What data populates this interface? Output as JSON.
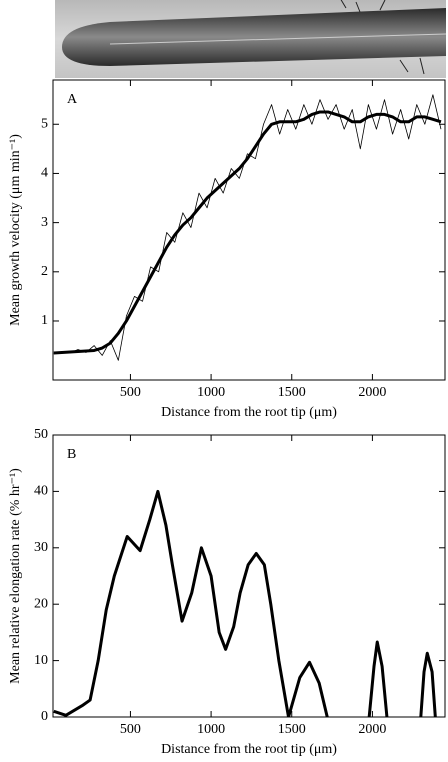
{
  "chart_data": [
    {
      "type": "line",
      "panel": "A",
      "ylabel": "Mean growth velocity (μm min⁻¹)",
      "xlabel": "Distance from the root tip (μm)",
      "x": [
        25,
        75,
        125,
        175,
        225,
        275,
        325,
        375,
        425,
        475,
        525,
        575,
        625,
        675,
        725,
        775,
        825,
        875,
        925,
        975,
        1025,
        1075,
        1125,
        1175,
        1225,
        1275,
        1325,
        1375,
        1425,
        1475,
        1525,
        1575,
        1625,
        1675,
        1725,
        1775,
        1825,
        1875,
        1925,
        1975,
        2025,
        2075,
        2125,
        2175,
        2225,
        2275,
        2325,
        2375,
        2425
      ],
      "series": [
        {
          "color": "#000000",
          "width": 0.8,
          "values": [
            0.33,
            0.38,
            0.35,
            0.42,
            0.36,
            0.5,
            0.3,
            0.6,
            0.2,
            1.1,
            1.5,
            1.4,
            2.1,
            2.0,
            2.8,
            2.6,
            3.2,
            2.9,
            3.6,
            3.3,
            3.9,
            3.6,
            4.1,
            3.9,
            4.4,
            4.3,
            5.0,
            5.4,
            4.8,
            5.3,
            4.9,
            5.4,
            5.0,
            5.5,
            5.1,
            5.4,
            4.9,
            5.3,
            4.5,
            5.4,
            4.9,
            5.5,
            4.8,
            5.3,
            4.7,
            5.4,
            5.0,
            5.6,
            4.9
          ]
        },
        {
          "color": "#000000",
          "width": 3,
          "values": [
            0.35,
            0.36,
            0.37,
            0.38,
            0.39,
            0.4,
            0.45,
            0.55,
            0.75,
            1.0,
            1.3,
            1.6,
            1.9,
            2.2,
            2.5,
            2.75,
            2.95,
            3.1,
            3.3,
            3.5,
            3.65,
            3.8,
            3.95,
            4.1,
            4.3,
            4.55,
            4.8,
            5.0,
            5.05,
            5.05,
            5.05,
            5.1,
            5.2,
            5.25,
            5.25,
            5.2,
            5.15,
            5.05,
            5.05,
            5.15,
            5.2,
            5.2,
            5.15,
            5.05,
            5.05,
            5.15,
            5.15,
            5.1,
            5.05
          ]
        }
      ],
      "xlim": [
        20,
        2450
      ],
      "xticks": [
        500,
        1000,
        1500,
        2000
      ],
      "ylim": [
        -0.2,
        5.9
      ],
      "yticks": [
        1,
        2,
        3,
        4,
        5
      ]
    },
    {
      "type": "line",
      "panel": "B",
      "ylabel": "Mean relative elongation rate (% hr⁻¹)",
      "xlabel": "Distance from the root tip (μm)",
      "x": [
        25,
        100,
        200,
        250,
        300,
        350,
        400,
        480,
        560,
        620,
        670,
        720,
        760,
        820,
        880,
        940,
        1000,
        1050,
        1090,
        1140,
        1180,
        1230,
        1280,
        1330,
        1370,
        1420,
        1480,
        1550,
        1610,
        1670,
        1720,
        1850,
        1980,
        2010,
        2030,
        2060,
        2090,
        2200,
        2300,
        2320,
        2340,
        2370,
        2390
      ],
      "series": [
        {
          "color": "#000000",
          "width": 3,
          "values": [
            1,
            0.3,
            2,
            3,
            10,
            19,
            25,
            32,
            29.5,
            35,
            40,
            34,
            27,
            17,
            22,
            30,
            25,
            15,
            12,
            16,
            22,
            27,
            29,
            27,
            20,
            10,
            0,
            7,
            9.7,
            6,
            0,
            null,
            0,
            9,
            13.3,
            9,
            0,
            null,
            0,
            8,
            11.3,
            8,
            0
          ]
        }
      ],
      "xlim": [
        20,
        2450
      ],
      "xticks": [
        500,
        1000,
        1500,
        2000
      ],
      "ylim": [
        0,
        50
      ],
      "yticks": [
        0,
        10,
        20,
        30,
        40,
        50
      ]
    }
  ]
}
